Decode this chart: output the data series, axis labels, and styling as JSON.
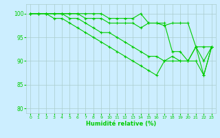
{
  "xlabel": "Humidité relative (%)",
  "background_color": "#cceeff",
  "grid_color": "#aacccc",
  "line_color": "#00cc00",
  "xlim": [
    -0.5,
    23.5
  ],
  "ylim": [
    79,
    102
  ],
  "yticks": [
    80,
    85,
    90,
    95,
    100
  ],
  "xticks": [
    0,
    1,
    2,
    3,
    4,
    5,
    6,
    7,
    8,
    9,
    10,
    11,
    12,
    13,
    14,
    15,
    16,
    17,
    18,
    19,
    20,
    21,
    22,
    23
  ],
  "lines": [
    [
      100,
      100,
      100,
      100,
      100,
      100,
      100,
      100,
      100,
      100,
      99,
      99,
      99,
      99,
      100,
      98,
      98,
      97.5,
      98,
      98,
      98,
      93,
      93,
      93
    ],
    [
      100,
      100,
      100,
      100,
      100,
      100,
      100,
      99,
      99,
      99,
      98,
      98,
      98,
      98,
      97,
      98,
      98,
      98,
      92,
      92,
      90,
      93,
      90,
      93
    ],
    [
      100,
      100,
      100,
      100,
      100,
      99,
      99,
      98,
      97,
      96,
      96,
      95,
      94,
      93,
      92,
      91,
      91,
      90,
      90,
      90,
      90,
      90,
      87,
      93
    ],
    [
      100,
      100,
      100,
      99,
      99,
      98,
      97,
      96,
      95,
      94,
      93,
      92,
      91,
      90,
      89,
      88,
      87,
      90,
      91,
      90,
      90,
      93,
      87,
      93
    ]
  ]
}
